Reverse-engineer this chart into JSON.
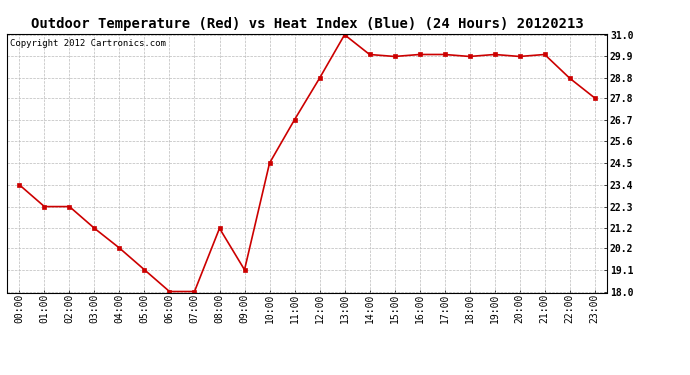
{
  "title": "Outdoor Temperature (Red) vs Heat Index (Blue) (24 Hours) 20120213",
  "copyright_text": "Copyright 2012 Cartronics.com",
  "x_labels": [
    "00:00",
    "01:00",
    "02:00",
    "03:00",
    "04:00",
    "05:00",
    "06:00",
    "07:00",
    "08:00",
    "09:00",
    "10:00",
    "11:00",
    "12:00",
    "13:00",
    "14:00",
    "15:00",
    "16:00",
    "17:00",
    "18:00",
    "19:00",
    "20:00",
    "21:00",
    "22:00",
    "23:00"
  ],
  "temp_red": [
    23.4,
    22.3,
    22.3,
    21.2,
    20.2,
    19.1,
    18.0,
    18.0,
    21.2,
    19.1,
    24.5,
    26.7,
    28.8,
    31.0,
    30.0,
    29.9,
    30.0,
    30.0,
    29.9,
    30.0,
    29.9,
    30.0,
    28.8,
    27.8
  ],
  "ylim_min": 18.0,
  "ylim_max": 31.0,
  "yticks": [
    18.0,
    19.1,
    20.2,
    21.2,
    22.3,
    23.4,
    24.5,
    25.6,
    26.7,
    27.8,
    28.8,
    29.9,
    31.0
  ],
  "line_color_red": "#cc0000",
  "marker_color_red": "#cc0000",
  "bg_color": "#ffffff",
  "grid_color": "#bbbbbb",
  "title_fontsize": 10,
  "tick_fontsize": 7,
  "copyright_fontsize": 6.5
}
